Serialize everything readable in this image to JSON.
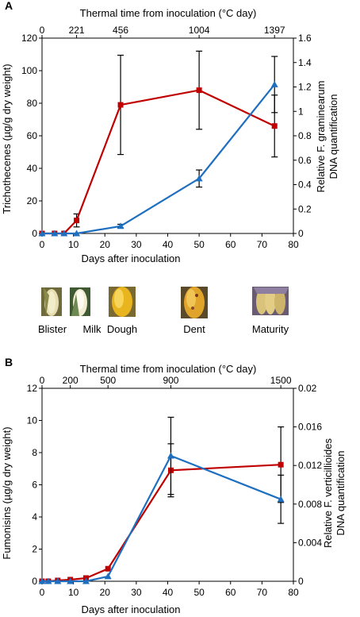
{
  "chart_data": [
    {
      "type": "line",
      "panel_label": "A",
      "xlabel": "Days after inoculation",
      "top_axis_label": "Thermal time from inoculation (°C day)",
      "ylabel": "Trichothecenes (µg/g dry weight)",
      "y2label_line1": "Relative F. graminearum",
      "y2label_line2": "DNA quantification",
      "xlim": [
        0,
        80
      ],
      "ylim": [
        0,
        120
      ],
      "y2lim": [
        0,
        1.6
      ],
      "xticks": [
        0,
        10,
        20,
        30,
        40,
        50,
        60,
        70,
        80
      ],
      "yticks": [
        0,
        20,
        40,
        60,
        80,
        100,
        120
      ],
      "y2ticks": [
        "0",
        "0.2",
        "0.4",
        "0.6",
        "0.8",
        "1",
        "1.2",
        "1.4",
        "1.6"
      ],
      "top_ticks": [
        {
          "label": "0",
          "x": 0
        },
        {
          "label": "221",
          "x": 11
        },
        {
          "label": "456",
          "x": 25
        },
        {
          "label": "1004",
          "x": 50
        },
        {
          "label": "1397",
          "x": 74
        }
      ],
      "series": [
        {
          "axis": "left",
          "color": "#c00000",
          "marker": "square",
          "points": [
            {
              "x": 0,
              "y": 0
            },
            {
              "x": 4,
              "y": 0
            },
            {
              "x": 7,
              "y": 0
            },
            {
              "x": 11,
              "y": 8,
              "err": 4
            },
            {
              "x": 25,
              "y": 79,
              "err": 30.5
            },
            {
              "x": 50,
              "y": 88,
              "err": 24
            },
            {
              "x": 74,
              "y": 66,
              "err": 19
            }
          ]
        },
        {
          "axis": "right",
          "color": "#1f6fc0",
          "marker": "triangle",
          "points": [
            {
              "x": 0,
              "y": 0
            },
            {
              "x": 4,
              "y": 0
            },
            {
              "x": 7,
              "y": 0
            },
            {
              "x": 11,
              "y": 0
            },
            {
              "x": 25,
              "y": 0.06,
              "err": 0.015
            },
            {
              "x": 50,
              "y": 0.45,
              "err": 0.07
            },
            {
              "x": 74,
              "y": 1.22,
              "err": 0.23
            }
          ]
        }
      ]
    },
    {
      "type": "line",
      "panel_label": "B",
      "xlabel": "Days after inoculation",
      "top_axis_label": "Thermal time from inoculation (°C day)",
      "ylabel": "Fumonisins (µg/g dry weight)",
      "y2label_line1": "Relative F. verticillioides",
      "y2label_line2": "DNA quantification",
      "xlim": [
        0,
        80
      ],
      "ylim": [
        0,
        12
      ],
      "y2lim": [
        0,
        0.02
      ],
      "xticks": [
        0,
        10,
        20,
        30,
        40,
        50,
        60,
        70,
        80
      ],
      "yticks": [
        0,
        2,
        4,
        6,
        8,
        10,
        12
      ],
      "y2ticks": [
        "0",
        "0.004",
        "0.008",
        "0.012",
        "0.016",
        "0.02"
      ],
      "top_ticks": [
        {
          "label": "0",
          "x": 0
        },
        {
          "label": "200",
          "x": 9
        },
        {
          "label": "500",
          "x": 21
        },
        {
          "label": "900",
          "x": 41
        },
        {
          "label": "1500",
          "x": 76
        }
      ],
      "series": [
        {
          "axis": "left",
          "color": "#c00000",
          "marker": "square",
          "points": [
            {
              "x": 0,
              "y": 0
            },
            {
              "x": 2,
              "y": 0
            },
            {
              "x": 5,
              "y": 0.05
            },
            {
              "x": 9,
              "y": 0.1
            },
            {
              "x": 14,
              "y": 0.2
            },
            {
              "x": 21,
              "y": 0.78
            },
            {
              "x": 41,
              "y": 6.9,
              "err": 1.65
            },
            {
              "x": 76,
              "y": 7.25,
              "err": 2.35
            }
          ]
        },
        {
          "axis": "right",
          "color": "#1f6fc0",
          "marker": "triangle",
          "points": [
            {
              "x": 0,
              "y": 0
            },
            {
              "x": 2,
              "y": 0
            },
            {
              "x": 5,
              "y": 0
            },
            {
              "x": 9,
              "y": 0
            },
            {
              "x": 14,
              "y": 0
            },
            {
              "x": 21,
              "y": 0.0005
            },
            {
              "x": 41,
              "y": 0.013,
              "err": 0.004
            },
            {
              "x": 76,
              "y": 0.0085,
              "err": 0.0025
            }
          ]
        }
      ]
    }
  ],
  "stages": [
    {
      "label": "Blister",
      "image": "corn-ear-blister"
    },
    {
      "label": "Milk",
      "image": "corn-ear-milk"
    },
    {
      "label": "Dough",
      "image": "corn-ear-dough"
    },
    {
      "label": "Dent",
      "image": "corn-ear-dent"
    },
    {
      "label": "Maturity",
      "image": "corn-ear-maturity"
    }
  ]
}
